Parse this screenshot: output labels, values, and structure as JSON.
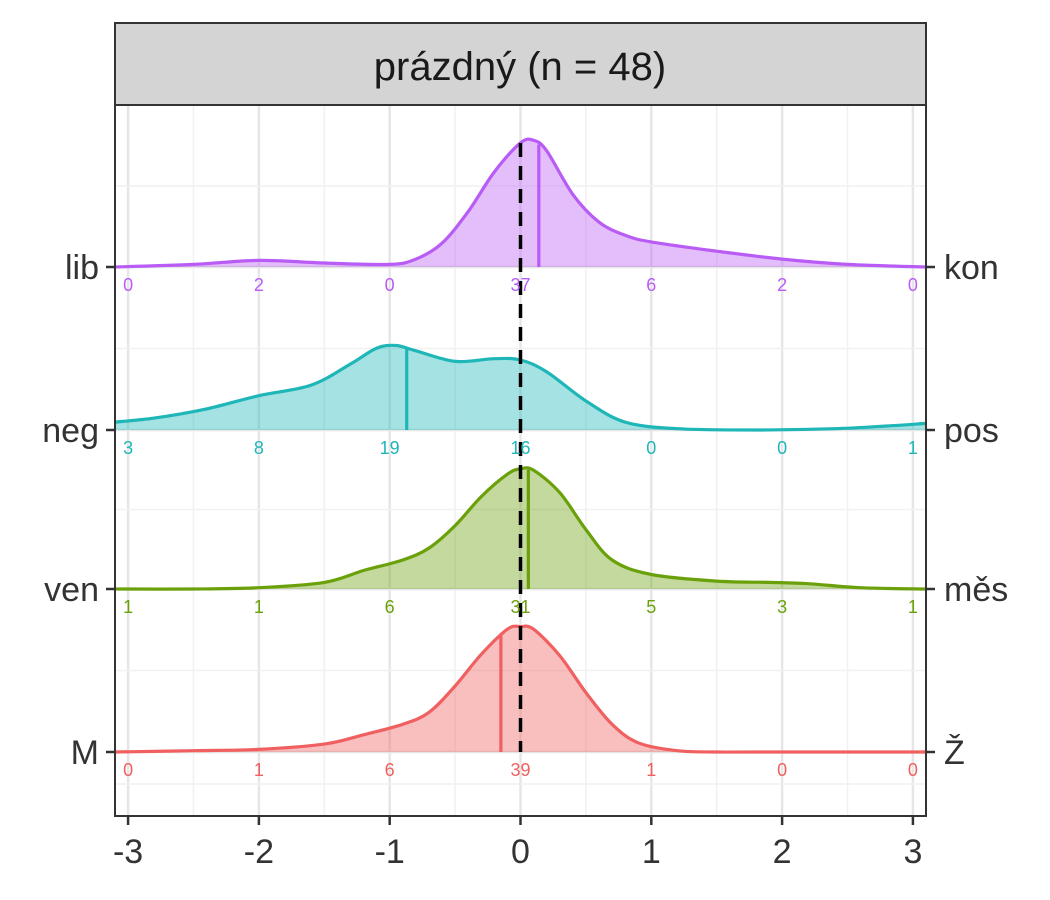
{
  "chart_data": {
    "type": "area",
    "panel_title": "prázdný (n = 48)",
    "xlim": [
      -3.1,
      3.1
    ],
    "x_ticks": [
      -3,
      -2,
      -1,
      0,
      1,
      2,
      3
    ],
    "x_tick_labels": [
      "-3",
      "-2",
      "-1",
      "0",
      "1",
      "2",
      "3"
    ],
    "reference_line_x": 0,
    "grid": true,
    "count_x": [
      -3,
      -2,
      -1,
      0,
      1,
      2,
      3
    ],
    "rows": [
      {
        "left_label": "lib",
        "right_label": "kon",
        "color": "#b85cf5",
        "mean": 0.14,
        "counts": [
          "0",
          "2",
          "0",
          "37",
          "6",
          "2",
          "0"
        ],
        "density": [
          [
            -3.1,
            0.0
          ],
          [
            -2.5,
            0.02
          ],
          [
            -2.0,
            0.05
          ],
          [
            -1.5,
            0.03
          ],
          [
            -1.0,
            0.02
          ],
          [
            -0.8,
            0.06
          ],
          [
            -0.6,
            0.18
          ],
          [
            -0.4,
            0.42
          ],
          [
            -0.2,
            0.72
          ],
          [
            0.0,
            0.94
          ],
          [
            0.1,
            0.96
          ],
          [
            0.2,
            0.88
          ],
          [
            0.4,
            0.55
          ],
          [
            0.6,
            0.34
          ],
          [
            0.8,
            0.24
          ],
          [
            1.0,
            0.19
          ],
          [
            1.5,
            0.12
          ],
          [
            2.0,
            0.06
          ],
          [
            2.5,
            0.02
          ],
          [
            3.1,
            0.0
          ]
        ]
      },
      {
        "left_label": "neg",
        "right_label": "pos",
        "color": "#1fb6b8",
        "mean": -0.87,
        "counts": [
          "3",
          "8",
          "19",
          "16",
          "0",
          "0",
          "1"
        ],
        "density": [
          [
            -3.1,
            0.06
          ],
          [
            -2.8,
            0.09
          ],
          [
            -2.4,
            0.16
          ],
          [
            -2.0,
            0.26
          ],
          [
            -1.6,
            0.34
          ],
          [
            -1.3,
            0.5
          ],
          [
            -1.1,
            0.62
          ],
          [
            -0.95,
            0.64
          ],
          [
            -0.8,
            0.6
          ],
          [
            -0.5,
            0.52
          ],
          [
            -0.2,
            0.54
          ],
          [
            0.0,
            0.53
          ],
          [
            0.2,
            0.44
          ],
          [
            0.5,
            0.22
          ],
          [
            0.8,
            0.06
          ],
          [
            1.2,
            0.01
          ],
          [
            1.8,
            0.0
          ],
          [
            2.4,
            0.01
          ],
          [
            2.8,
            0.03
          ],
          [
            3.1,
            0.05
          ]
        ]
      },
      {
        "left_label": "ven",
        "right_label": "měs",
        "color": "#6aa10a",
        "mean": 0.06,
        "counts": [
          "1",
          "1",
          "6",
          "31",
          "5",
          "3",
          "1"
        ],
        "density": [
          [
            -3.1,
            0.0
          ],
          [
            -2.5,
            0.0
          ],
          [
            -2.0,
            0.01
          ],
          [
            -1.5,
            0.05
          ],
          [
            -1.2,
            0.14
          ],
          [
            -0.9,
            0.22
          ],
          [
            -0.7,
            0.31
          ],
          [
            -0.5,
            0.48
          ],
          [
            -0.3,
            0.7
          ],
          [
            -0.1,
            0.87
          ],
          [
            0.0,
            0.91
          ],
          [
            0.1,
            0.9
          ],
          [
            0.3,
            0.73
          ],
          [
            0.5,
            0.45
          ],
          [
            0.7,
            0.22
          ],
          [
            1.0,
            0.11
          ],
          [
            1.5,
            0.06
          ],
          [
            1.9,
            0.05
          ],
          [
            2.2,
            0.04
          ],
          [
            2.6,
            0.01
          ],
          [
            3.1,
            0.0
          ]
        ]
      },
      {
        "left_label": "M",
        "right_label": "Ž",
        "color": "#f06060",
        "mean": -0.15,
        "counts": [
          "0",
          "1",
          "6",
          "39",
          "1",
          "0",
          "0"
        ],
        "density": [
          [
            -3.1,
            0.0
          ],
          [
            -2.5,
            0.01
          ],
          [
            -2.0,
            0.02
          ],
          [
            -1.5,
            0.06
          ],
          [
            -1.2,
            0.13
          ],
          [
            -0.9,
            0.21
          ],
          [
            -0.7,
            0.3
          ],
          [
            -0.5,
            0.5
          ],
          [
            -0.3,
            0.74
          ],
          [
            -0.1,
            0.93
          ],
          [
            0.0,
            0.95
          ],
          [
            0.1,
            0.93
          ],
          [
            0.3,
            0.73
          ],
          [
            0.5,
            0.45
          ],
          [
            0.7,
            0.21
          ],
          [
            0.9,
            0.07
          ],
          [
            1.2,
            0.01
          ],
          [
            1.5,
            0.0
          ],
          [
            2.0,
            0.0
          ],
          [
            3.1,
            0.0
          ]
        ]
      }
    ]
  }
}
